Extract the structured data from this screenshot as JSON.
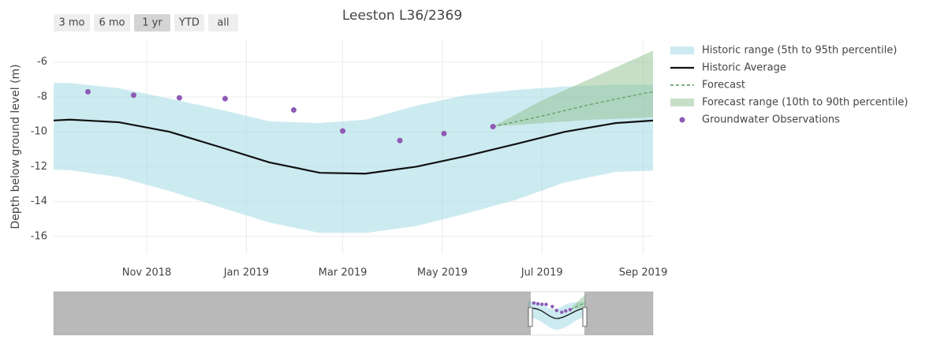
{
  "chart_data": {
    "type": "line",
    "title": "Leeston L36/2369",
    "y_label": "Depth below ground level (m)",
    "range_buttons": [
      "3 mo",
      "6 mo",
      "1 yr",
      "YTD",
      "all"
    ],
    "active_button": "1 yr",
    "xlim": [
      "2018-09-05",
      "2019-09-07"
    ],
    "xticks": [
      {
        "value": "2018-11-01",
        "label": "Nov 2018"
      },
      {
        "value": "2019-01-01",
        "label": "Jan 2019"
      },
      {
        "value": "2019-03-01",
        "label": "Mar 2019"
      },
      {
        "value": "2019-05-01",
        "label": "May 2019"
      },
      {
        "value": "2019-07-01",
        "label": "Jul 2019"
      },
      {
        "value": "2019-09-01",
        "label": "Sep 2019"
      }
    ],
    "ylim": [
      -17,
      -4.7
    ],
    "yticks": [
      -16,
      -14,
      -12,
      -10,
      -8,
      -6
    ],
    "grid": true,
    "legend": "right",
    "series": [
      {
        "name": "Historic range (5th to 95th percentile)",
        "mode": "band",
        "color": "#9ad8e2",
        "x": [
          "2018-08-15",
          "2018-09-15",
          "2018-10-15",
          "2018-11-15",
          "2018-12-15",
          "2019-01-15",
          "2019-02-15",
          "2019-03-15",
          "2019-04-15",
          "2019-05-15",
          "2019-06-15",
          "2019-07-15",
          "2019-08-15",
          "2019-09-15"
        ],
        "upper": [
          -7.2,
          -7.2,
          -7.5,
          -8.1,
          -8.7,
          -9.4,
          -9.5,
          -9.3,
          -8.5,
          -7.9,
          -7.6,
          -7.4,
          -7.3,
          -7.3
        ],
        "lower": [
          -12.1,
          -12.2,
          -12.6,
          -13.4,
          -14.3,
          -15.2,
          -15.8,
          -15.8,
          -15.4,
          -14.7,
          -13.9,
          -12.9,
          -12.3,
          -12.2
        ]
      },
      {
        "name": "Historic Average",
        "mode": "line",
        "color": "#111111",
        "x": [
          "2018-08-15",
          "2018-09-15",
          "2018-10-15",
          "2018-11-15",
          "2018-12-15",
          "2019-01-15",
          "2019-02-15",
          "2019-03-15",
          "2019-04-15",
          "2019-05-15",
          "2019-06-15",
          "2019-07-15",
          "2019-08-15",
          "2019-09-15"
        ],
        "values": [
          -9.45,
          -9.3,
          -9.45,
          -10.0,
          -10.85,
          -11.75,
          -12.35,
          -12.4,
          -12.0,
          -11.4,
          -10.7,
          -10.0,
          -9.5,
          -9.3
        ]
      },
      {
        "name": "Forecast",
        "mode": "dash",
        "color": "#2e7d32",
        "x": [
          "2019-06-01",
          "2019-07-01",
          "2019-08-01",
          "2019-09-01",
          "2019-09-15"
        ],
        "values": [
          -9.7,
          -9.1,
          -8.4,
          -7.8,
          -7.6
        ]
      },
      {
        "name": "Forecast range (10th to 90th percentile)",
        "mode": "band",
        "color": "#8fbf8f",
        "x": [
          "2019-06-01",
          "2019-07-01",
          "2019-08-01",
          "2019-09-01",
          "2019-09-15"
        ],
        "upper": [
          -9.7,
          -8.2,
          -6.9,
          -5.6,
          -5.0
        ],
        "lower": [
          -9.7,
          -9.5,
          -9.3,
          -9.2,
          -9.1
        ]
      },
      {
        "name": "Groundwater Observations",
        "mode": "markers",
        "color": "#8e5bb5",
        "x": [
          "2018-09-26",
          "2018-10-24",
          "2018-11-21",
          "2018-12-19",
          "2019-01-30",
          "2019-03-01",
          "2019-04-05",
          "2019-05-02",
          "2019-06-01"
        ],
        "values": [
          -7.7,
          -7.9,
          -8.05,
          -8.1,
          -8.75,
          -9.95,
          -10.5,
          -10.1,
          -9.7
        ]
      }
    ]
  }
}
